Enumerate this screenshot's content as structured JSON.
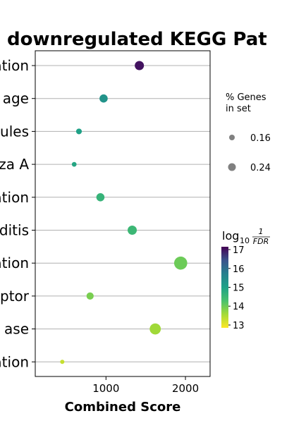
{
  "chart_data": {
    "type": "scatter",
    "title": "downregulated KEGG Pat",
    "xlabel": "Combined Score",
    "xlim": [
      110,
      2310
    ],
    "xticks": [
      1000,
      2000
    ],
    "grid": "horizontal",
    "categories": [
      "ation",
      "age",
      "ules",
      "za A",
      "ation",
      "ditis",
      "ation",
      "ptor",
      "ase",
      "ation"
    ],
    "points": [
      {
        "x": 1420,
        "size": 0.22,
        "log10_inv_fdr": 17.0
      },
      {
        "x": 970,
        "size": 0.2,
        "log10_inv_fdr": 15.3
      },
      {
        "x": 660,
        "size": 0.15,
        "log10_inv_fdr": 15.0
      },
      {
        "x": 600,
        "size": 0.13,
        "log10_inv_fdr": 14.9
      },
      {
        "x": 930,
        "size": 0.2,
        "log10_inv_fdr": 14.6
      },
      {
        "x": 1330,
        "size": 0.22,
        "log10_inv_fdr": 14.5
      },
      {
        "x": 1940,
        "size": 0.3,
        "log10_inv_fdr": 14.0
      },
      {
        "x": 800,
        "size": 0.18,
        "log10_inv_fdr": 13.9
      },
      {
        "x": 1620,
        "size": 0.26,
        "log10_inv_fdr": 13.6
      },
      {
        "x": 450,
        "size": 0.12,
        "log10_inv_fdr": 13.3
      }
    ],
    "size_legend": {
      "title_lines": [
        "% Genes",
        "in set"
      ],
      "entries": [
        {
          "label": "0.16",
          "value": 0.16
        },
        {
          "label": "0.24",
          "value": 0.24
        }
      ]
    },
    "colorbar": {
      "title_prefix": "log",
      "title_sub": "10",
      "frac_num": "1",
      "frac_den": "FDR",
      "range": [
        12.85,
        17.15
      ],
      "ticks": [
        "17",
        "16",
        "15",
        "14",
        "13"
      ],
      "colormap": "viridis"
    }
  }
}
